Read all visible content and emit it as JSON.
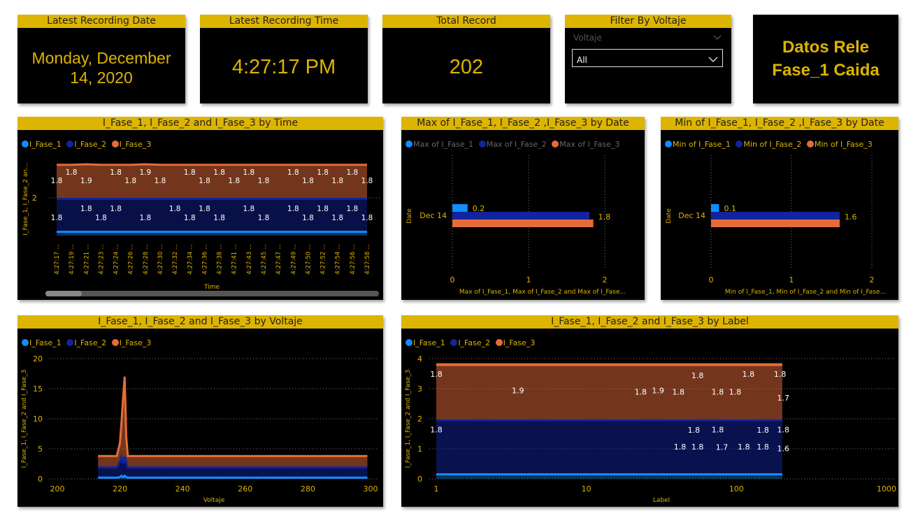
{
  "kpis": {
    "date": {
      "title": "Latest Recording Date",
      "value_line1": "Monday, December",
      "value_line2": "14, 2020"
    },
    "time": {
      "title": "Latest Recording Time",
      "value": "4:27:17 PM"
    },
    "total": {
      "title": "Total Record",
      "value": "202"
    }
  },
  "filter": {
    "title": "Filter By Voltaje",
    "label": "Voltaje",
    "selected": "All"
  },
  "page_title": {
    "line1": "Datos Rele",
    "line2": "Fase_1 Caida"
  },
  "colors": {
    "fase1": "#118DFF",
    "fase2": "#12239E",
    "fase3": "#E66C37",
    "accent": "#DDB400"
  },
  "legend": {
    "s1": "I_Fase_1",
    "s2": "I_Fase_2",
    "s3": "I_Fase_3"
  },
  "chart_data": [
    {
      "id": "time",
      "type": "area",
      "title": "I_Fase_1, I_Fase_2 and I_Fase_3 by Time",
      "xlabel": "Time",
      "ylabel": "I_Fase_1, I_Fase_2 an...",
      "yticks": [
        "2"
      ],
      "x": [
        "4:27:17 ...",
        "4:27:19 ...",
        "4:27:21 ...",
        "4:27:23 ...",
        "4:27:24 ...",
        "4:27:26 ...",
        "4:27:28 ...",
        "4:27:30 ...",
        "4:27:32 ...",
        "4:27:34 ...",
        "4:27:36 ...",
        "4:27:38 ...",
        "4:27:41 ...",
        "4:27:43 ...",
        "4:27:45 ...",
        "4:27:47 ...",
        "4:27:49 ...",
        "4:27:50 ...",
        "4:27:52 ...",
        "4:27:54 ...",
        "4:27:56 ...",
        "4:27:58 ..."
      ],
      "series": [
        {
          "name": "I_Fase_1",
          "values": [
            0.2,
            0.2,
            0.2,
            0.2,
            0.2,
            0.2,
            0.2,
            0.2,
            0.2,
            0.2,
            0.2,
            0.2,
            0.2,
            0.2,
            0.2,
            0.2,
            0.2,
            0.2,
            0.2,
            0.2,
            0.2,
            0.2
          ]
        },
        {
          "name": "I_Fase_2",
          "values": [
            1.8,
            1.8,
            1.8,
            1.8,
            1.8,
            1.8,
            1.8,
            1.8,
            1.8,
            1.8,
            1.8,
            1.8,
            1.8,
            1.8,
            1.8,
            1.8,
            1.8,
            1.8,
            1.8,
            1.8,
            1.8,
            1.8
          ]
        },
        {
          "name": "I_Fase_3",
          "values": [
            1.8,
            1.8,
            1.9,
            1.8,
            1.8,
            1.8,
            1.9,
            1.8,
            1.8,
            1.8,
            1.8,
            1.8,
            1.8,
            1.8,
            1.8,
            1.8,
            1.8,
            1.8,
            1.8,
            1.8,
            1.8,
            1.8
          ]
        }
      ],
      "labels_top": [
        {
          "i": 0,
          "t": "1.8",
          "r": 1
        },
        {
          "i": 1,
          "t": "1.8",
          "r": 0
        },
        {
          "i": 2,
          "t": "1.9",
          "r": 1
        },
        {
          "i": 4,
          "t": "1.8",
          "r": 0
        },
        {
          "i": 5,
          "t": "1.8",
          "r": 1
        },
        {
          "i": 6,
          "t": "1.9",
          "r": 0
        },
        {
          "i": 7,
          "t": "1.8",
          "r": 1
        },
        {
          "i": 9,
          "t": "1.8",
          "r": 0
        },
        {
          "i": 10,
          "t": "1.8",
          "r": 1
        },
        {
          "i": 11,
          "t": "1.8",
          "r": 0
        },
        {
          "i": 12,
          "t": "1.8",
          "r": 1
        },
        {
          "i": 13,
          "t": "1.8",
          "r": 0
        },
        {
          "i": 14,
          "t": "1.8",
          "r": 1
        },
        {
          "i": 16,
          "t": "1.8",
          "r": 0
        },
        {
          "i": 17,
          "t": "1.8",
          "r": 1
        },
        {
          "i": 18,
          "t": "1.8",
          "r": 0
        },
        {
          "i": 19,
          "t": "1.8",
          "r": 1
        },
        {
          "i": 20,
          "t": "1.8",
          "r": 0
        },
        {
          "i": 21,
          "t": "1.8",
          "r": 1
        }
      ],
      "labels_mid": [
        {
          "i": 0,
          "t": "1.8",
          "r": 1
        },
        {
          "i": 2,
          "t": "1.8",
          "r": 0
        },
        {
          "i": 3,
          "t": "1.8",
          "r": 1
        },
        {
          "i": 4,
          "t": "1.8",
          "r": 0
        },
        {
          "i": 6,
          "t": "1.8",
          "r": 1
        },
        {
          "i": 8,
          "t": "1.8",
          "r": 0
        },
        {
          "i": 9,
          "t": "1.8",
          "r": 1
        },
        {
          "i": 10,
          "t": "1.8",
          "r": 0
        },
        {
          "i": 11,
          "t": "1.8",
          "r": 1
        },
        {
          "i": 13,
          "t": "1.8",
          "r": 0
        },
        {
          "i": 14,
          "t": "1.8",
          "r": 1
        },
        {
          "i": 16,
          "t": "1.8",
          "r": 0
        },
        {
          "i": 17,
          "t": "1.8",
          "r": 1
        },
        {
          "i": 18,
          "t": "1.8",
          "r": 0
        },
        {
          "i": 19,
          "t": "1.8",
          "r": 1
        },
        {
          "i": 20,
          "t": "1.8",
          "r": 0
        },
        {
          "i": 21,
          "t": "1.8",
          "r": 1
        }
      ]
    },
    {
      "id": "max",
      "type": "bar",
      "title": "Max of I_Fase_1, I_Fase_2 ,I_Fase_3 by Date",
      "legend": [
        "Max of I_Fase_1",
        "Max of I_Fase_2",
        "Max of I_Fase_3"
      ],
      "categories": [
        "Dec 14"
      ],
      "series": [
        {
          "name": "Max of I_Fase_1",
          "values": [
            0.2
          ]
        },
        {
          "name": "Max of I_Fase_2",
          "values": [
            1.8
          ]
        },
        {
          "name": "Max of I_Fase_3",
          "values": [
            1.85
          ]
        }
      ],
      "data_labels": [
        "0.2",
        "1.8"
      ],
      "xlim": [
        0,
        2
      ],
      "xticks": [
        "0",
        "1",
        "2"
      ],
      "xlabel": "Max of I_Fase_1, Max of I_Fase_2 and Max of I_Fase...",
      "ylabel": "Date"
    },
    {
      "id": "min",
      "type": "bar",
      "title": "Min of I_Fase_1, I_Fase_2 ,I_Fase_3 by Date",
      "legend": [
        "Min of I_Fase_1",
        "Min of I_Fase_2",
        "Min of I_Fase_3"
      ],
      "categories": [
        "Dec 14"
      ],
      "series": [
        {
          "name": "Min of I_Fase_1",
          "values": [
            0.1
          ]
        },
        {
          "name": "Min of I_Fase_2",
          "values": [
            1.6
          ]
        },
        {
          "name": "Min of I_Fase_3",
          "values": [
            1.6
          ]
        }
      ],
      "data_labels": [
        "0.1",
        "1.6"
      ],
      "xlim": [
        0,
        2
      ],
      "xticks": [
        "0",
        "1",
        "2"
      ],
      "xlabel": "Min of I_Fase_1, Min of I_Fase_2 and Min of I_Fase...",
      "ylabel": "Date"
    },
    {
      "id": "voltaje",
      "type": "area",
      "title": "I_Fase_1, I_Fase_2 and I_Fase_3 by Voltaje",
      "xlabel": "Voltaje",
      "ylabel": "I_Fase_1, I_Fase_2 and I_Fase_3",
      "xlim": [
        200,
        300
      ],
      "ylim": [
        0,
        20
      ],
      "xticks": [
        "200",
        "220",
        "240",
        "260",
        "280",
        "300"
      ],
      "yticks": [
        "0",
        "5",
        "10",
        "15",
        "20"
      ],
      "x": [
        213,
        219,
        220,
        220.5,
        221,
        221.5,
        222,
        222.5,
        223,
        230,
        260,
        299
      ],
      "series": [
        {
          "name": "I_Fase_1",
          "values": [
            0.2,
            0.2,
            0.3,
            0.5,
            0.3,
            0.5,
            0.3,
            0.2,
            0.2,
            0.2,
            0.2,
            0.2
          ]
        },
        {
          "name": "I_Fase_2",
          "values": [
            1.9,
            1.9,
            2.8,
            3.4,
            2.5,
            3.4,
            2.6,
            1.9,
            1.9,
            1.9,
            1.9,
            1.9
          ]
        },
        {
          "name": "I_Fase_3",
          "values": [
            1.8,
            1.8,
            4.0,
            7.5,
            11.5,
            15.0,
            5.0,
            1.8,
            1.8,
            1.8,
            1.8,
            1.8
          ]
        }
      ]
    },
    {
      "id": "label",
      "type": "area",
      "title": "I_Fase_1, I_Fase_2 and I_Fase_3 by Label",
      "xlabel": "Label",
      "ylabel": "I_Fase_1, I_Fase_2 and I_Fase_3",
      "xscale": "log",
      "xlim": [
        1,
        1000
      ],
      "ylim": [
        0,
        4
      ],
      "xticks": [
        "1",
        "10",
        "100",
        "1000"
      ],
      "yticks": [
        "0",
        "1",
        "2",
        "3",
        "4"
      ],
      "x": [
        1,
        202
      ],
      "series": [
        {
          "name": "I_Fase_1",
          "values": [
            0.15,
            0.15
          ]
        },
        {
          "name": "I_Fase_2",
          "values": [
            1.8,
            1.8
          ]
        },
        {
          "name": "I_Fase_3",
          "values": [
            1.85,
            1.85
          ]
        }
      ],
      "annotations": [
        {
          "x": 1,
          "y": 3.4,
          "t": "1.8"
        },
        {
          "x": 3.5,
          "y": 2.85,
          "t": "1.9"
        },
        {
          "x": 23,
          "y": 2.8,
          "t": "1.8"
        },
        {
          "x": 30,
          "y": 2.85,
          "t": "1.9"
        },
        {
          "x": 41,
          "y": 2.8,
          "t": "1.8"
        },
        {
          "x": 55,
          "y": 3.35,
          "t": "1.8"
        },
        {
          "x": 75,
          "y": 2.8,
          "t": "1.8"
        },
        {
          "x": 98,
          "y": 2.8,
          "t": "1.8"
        },
        {
          "x": 120,
          "y": 3.4,
          "t": "1.8"
        },
        {
          "x": 195,
          "y": 3.4,
          "t": "1.8"
        },
        {
          "x": 205,
          "y": 2.6,
          "t": "1.7"
        },
        {
          "x": 1,
          "y": 1.55,
          "t": "1.8"
        },
        {
          "x": 52,
          "y": 1.53,
          "t": "1.8"
        },
        {
          "x": 75,
          "y": 1.55,
          "t": "1.8"
        },
        {
          "x": 150,
          "y": 1.53,
          "t": "1.8"
        },
        {
          "x": 205,
          "y": 1.55,
          "t": "1.8"
        },
        {
          "x": 42,
          "y": 0.98,
          "t": "1.8"
        },
        {
          "x": 55,
          "y": 0.98,
          "t": "1.8"
        },
        {
          "x": 80,
          "y": 0.96,
          "t": "1.7"
        },
        {
          "x": 112,
          "y": 0.98,
          "t": "1.8"
        },
        {
          "x": 150,
          "y": 0.98,
          "t": "1.8"
        },
        {
          "x": 205,
          "y": 0.92,
          "t": "1.6"
        }
      ]
    }
  ]
}
